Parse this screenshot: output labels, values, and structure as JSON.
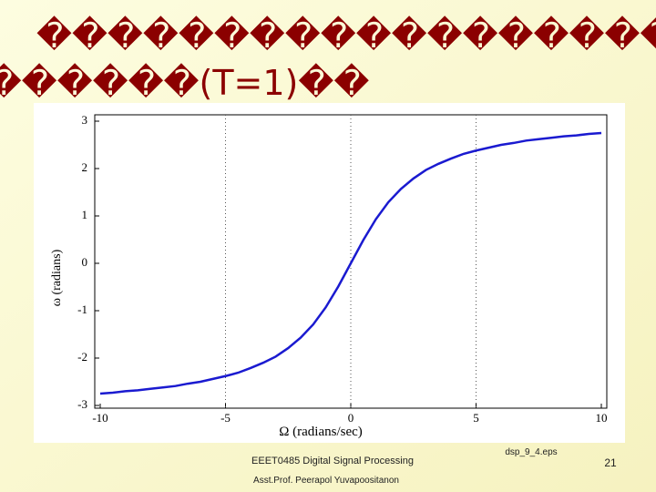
{
  "slide": {
    "title": [
      "��������������������",
      "������(T=1)��"
    ],
    "footer_course": "EEET0485 Digital Signal Processing",
    "footer_author": "Asst.Prof. Peerapol Yuvapoositanon",
    "footer_file": "dsp_9_4.eps",
    "page_number": "21"
  },
  "chart_data": {
    "type": "line",
    "x_label": "Ω (radians/sec)",
    "y_label": "ω (radians)",
    "x": [
      -10,
      -9.5,
      -9,
      -8.5,
      -8,
      -7.5,
      -7,
      -6.5,
      -6,
      -5.5,
      -5,
      -4.5,
      -4,
      -3.5,
      -3,
      -2.5,
      -2,
      -1.5,
      -1,
      -0.5,
      0,
      0.5,
      1,
      1.5,
      2,
      2.5,
      3,
      3.5,
      4,
      4.5,
      5,
      5.5,
      6,
      6.5,
      7,
      7.5,
      8,
      8.5,
      9,
      9.5,
      10
    ],
    "series": [
      {
        "color": "#1a1ad0",
        "values": [
          -2.75,
          -2.73,
          -2.7,
          -2.68,
          -2.65,
          -2.62,
          -2.59,
          -2.54,
          -2.5,
          -2.44,
          -2.38,
          -2.31,
          -2.21,
          -2.1,
          -1.97,
          -1.79,
          -1.57,
          -1.29,
          -0.93,
          -0.49,
          0,
          0.49,
          0.93,
          1.29,
          1.57,
          1.79,
          1.97,
          2.1,
          2.21,
          2.31,
          2.38,
          2.44,
          2.5,
          2.54,
          2.59,
          2.62,
          2.65,
          2.68,
          2.7,
          2.73,
          2.75
        ]
      }
    ],
    "xlim": [
      -10,
      10
    ],
    "xticks": [
      -10,
      -5,
      0,
      5,
      10
    ],
    "ylim": [
      -3,
      3
    ],
    "yticks": [
      -3,
      -2,
      -1,
      0,
      1,
      2,
      3
    ],
    "grid": true
  }
}
